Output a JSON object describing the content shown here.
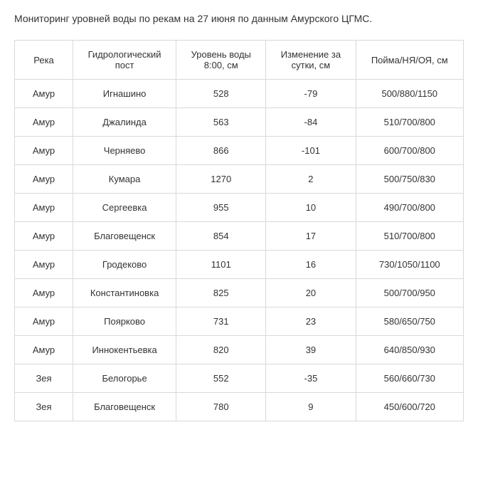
{
  "title": "Мониторинг уровней воды по рекам на 27 июня по данным Амурского ЦГМС.",
  "table": {
    "columns": [
      "Река",
      "Гидрологический пост",
      "Уровень воды 8:00, см",
      "Изменение за сутки, см",
      "Пойма/НЯ/ОЯ, см"
    ],
    "rows": [
      [
        "Амур",
        "Игнашино",
        "528",
        "-79",
        "500/880/1150"
      ],
      [
        "Амур",
        "Джалинда",
        "563",
        "-84",
        "510/700/800"
      ],
      [
        "Амур",
        "Черняево",
        "866",
        "-101",
        "600/700/800"
      ],
      [
        "Амур",
        "Кумара",
        "1270",
        "2",
        "500/750/830"
      ],
      [
        "Амур",
        "Сергеевка",
        "955",
        "10",
        "490/700/800"
      ],
      [
        "Амур",
        "Благовещенск",
        "854",
        "17",
        "510/700/800"
      ],
      [
        "Амур",
        "Гродеково",
        "1101",
        "16",
        "730/1050/1100"
      ],
      [
        "Амур",
        "Константиновка",
        "825",
        "20",
        "500/700/950"
      ],
      [
        "Амур",
        "Поярково",
        "731",
        "23",
        "580/650/750"
      ],
      [
        "Амур",
        "Иннокентьевка",
        "820",
        "39",
        "640/850/930"
      ],
      [
        "Зея",
        "Белогорье",
        "552",
        "-35",
        "560/660/730"
      ],
      [
        "Зея",
        "Благовещенск",
        "780",
        "9",
        "450/600/720"
      ]
    ],
    "border_color": "#d9d9d9",
    "text_color": "#333333",
    "background_color": "#ffffff",
    "font_size_title": 14,
    "font_size_cells": 13,
    "col_widths_pct": [
      13,
      23,
      20,
      20,
      24
    ]
  }
}
